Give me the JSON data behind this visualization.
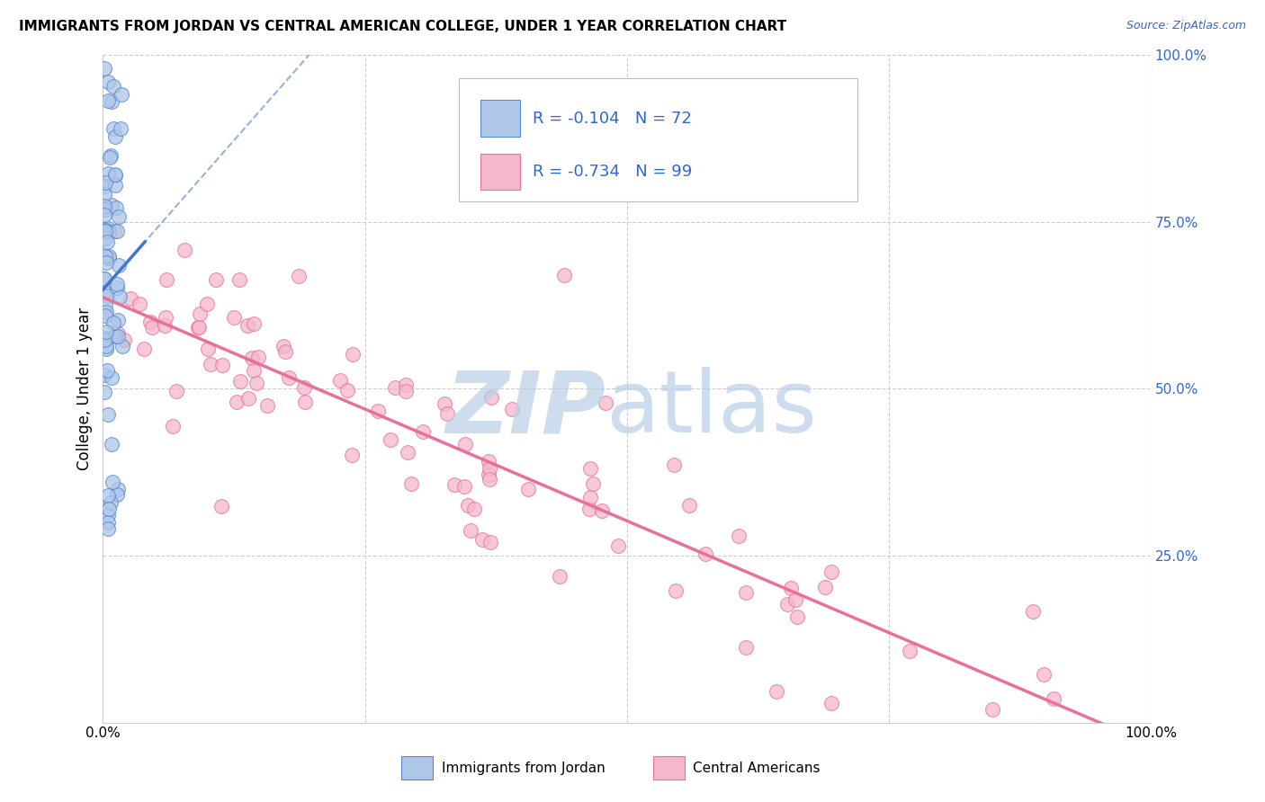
{
  "title": "IMMIGRANTS FROM JORDAN VS CENTRAL AMERICAN COLLEGE, UNDER 1 YEAR CORRELATION CHART",
  "source": "Source: ZipAtlas.com",
  "ylabel": "College, Under 1 year",
  "xlim": [
    0.0,
    1.0
  ],
  "ylim": [
    0.0,
    1.0
  ],
  "xtick_labels": [
    "0.0%",
    "",
    "",
    "",
    "100.0%"
  ],
  "ytick_labels": [
    "",
    "25.0%",
    "50.0%",
    "75.0%",
    "100.0%"
  ],
  "jordan_R": -0.104,
  "jordan_N": 72,
  "central_R": -0.734,
  "central_N": 99,
  "jordan_fill": "#aec6e8",
  "central_fill": "#f5b8cb",
  "jordan_edge": "#5588cc",
  "central_edge": "#e8709a",
  "jordan_line_color": "#4477cc",
  "central_line_color": "#e8709a",
  "dashed_color": "#88aadd",
  "watermark_zip_color": "#b8cfe8",
  "watermark_atlas_color": "#b8cfe8",
  "legend_text_color": "#3366cc",
  "background": "#ffffff",
  "grid_color": "#cccccc"
}
